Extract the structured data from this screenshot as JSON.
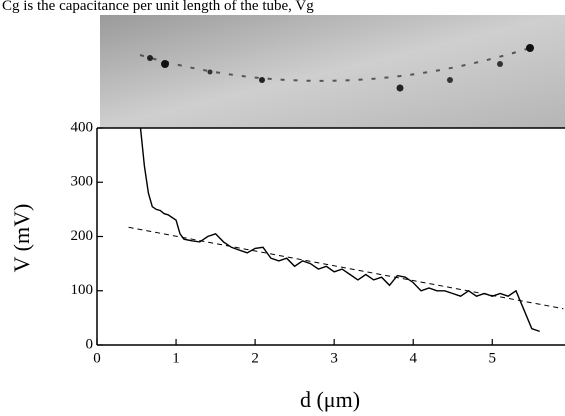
{
  "header_text": "Cg is the capacitance per unit length of the tube, Vg",
  "chart_data": {
    "type": "line",
    "xlabel": "d (μm)",
    "ylabel": "V (mV)",
    "xlim": [
      0,
      5.92
    ],
    "ylim": [
      0,
      400
    ],
    "xticks": [
      0,
      1,
      2,
      3,
      4,
      5
    ],
    "yticks": [
      0,
      100,
      200,
      300,
      400
    ],
    "series": [
      {
        "color": "#000000",
        "dash": false,
        "x": [
          0.55,
          0.6,
          0.65,
          0.7,
          0.75,
          0.8,
          0.85,
          0.9,
          0.95,
          1.0,
          1.05,
          1.1,
          1.2,
          1.3,
          1.4,
          1.5,
          1.6,
          1.7,
          1.8,
          1.9,
          2.0,
          2.1,
          2.2,
          2.3,
          2.4,
          2.5,
          2.6,
          2.7,
          2.8,
          2.9,
          3.0,
          3.1,
          3.2,
          3.3,
          3.4,
          3.5,
          3.6,
          3.7,
          3.8,
          3.9,
          4.0,
          4.1,
          4.2,
          4.3,
          4.4,
          4.5,
          4.6,
          4.7,
          4.8,
          4.9,
          5.0,
          5.1,
          5.2,
          5.3,
          5.4,
          5.5,
          5.6
        ],
        "y": [
          400,
          330,
          280,
          255,
          250,
          248,
          242,
          240,
          235,
          230,
          205,
          195,
          192,
          190,
          200,
          205,
          190,
          180,
          175,
          170,
          178,
          180,
          160,
          155,
          160,
          145,
          155,
          150,
          140,
          145,
          135,
          140,
          130,
          120,
          130,
          120,
          125,
          110,
          128,
          125,
          115,
          100,
          105,
          100,
          100,
          95,
          90,
          100,
          90,
          95,
          90,
          95,
          90,
          100,
          65,
          30,
          25
        ]
      },
      {
        "color": "#000000",
        "dash": true,
        "x": [
          0.4,
          5.9
        ],
        "y": [
          217,
          67
        ]
      }
    ]
  }
}
